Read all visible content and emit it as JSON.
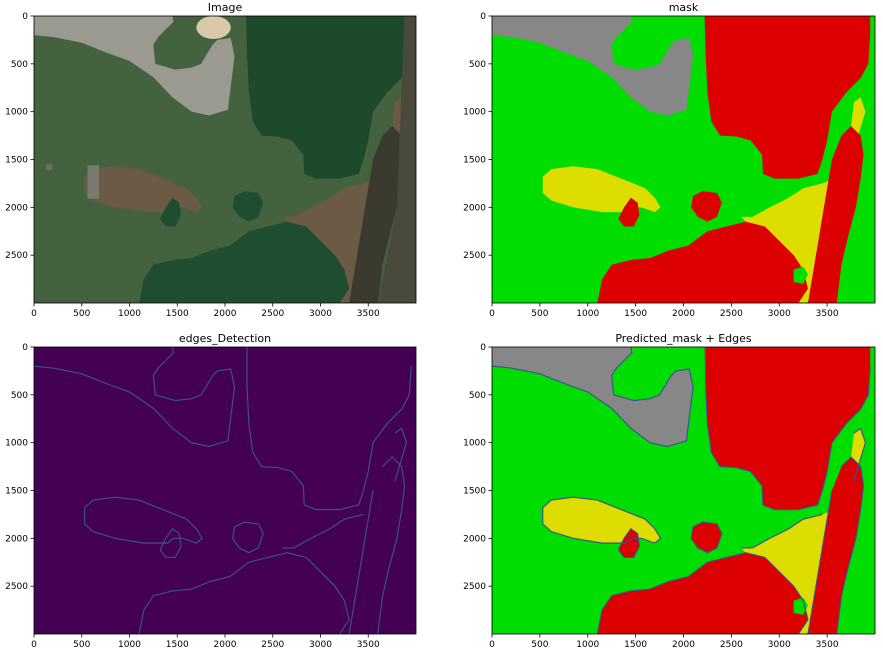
{
  "colors": {
    "green": "#00dd00",
    "red": "#dd0000",
    "yellow": "#dddd00",
    "gray": "#878787",
    "edges_bg": "#440154",
    "edges_line": "#3b528b"
  },
  "chart_data": [
    {
      "type": "image",
      "title": "Image",
      "xlim": [
        0,
        4000
      ],
      "ylim": [
        3000,
        0
      ],
      "xticks": [
        0,
        500,
        1000,
        1500,
        2000,
        2500,
        3000,
        3500
      ],
      "yticks": [
        0,
        500,
        1000,
        1500,
        2000,
        2500
      ]
    },
    {
      "type": "image",
      "title": "mask",
      "xlim": [
        0,
        4000
      ],
      "ylim": [
        3000,
        0
      ],
      "xticks": [
        0,
        500,
        1000,
        1500,
        2000,
        2500,
        3000,
        3500
      ],
      "yticks": [
        0,
        500,
        1000,
        1500,
        2000,
        2500
      ]
    },
    {
      "type": "image",
      "title": "edges_Detection",
      "xlim": [
        0,
        4000
      ],
      "ylim": [
        3000,
        0
      ],
      "xticks": [
        0,
        500,
        1000,
        1500,
        2000,
        2500,
        3000,
        3500
      ],
      "yticks": [
        0,
        500,
        1000,
        1500,
        2000,
        2500
      ]
    },
    {
      "type": "image",
      "title": "Predicted_mask + Edges",
      "xlim": [
        0,
        4000
      ],
      "ylim": [
        3000,
        0
      ],
      "xticks": [
        0,
        500,
        1000,
        1500,
        2000,
        2500,
        3000,
        3500
      ],
      "yticks": [
        0,
        500,
        1000,
        1500,
        2000,
        2500
      ]
    }
  ]
}
